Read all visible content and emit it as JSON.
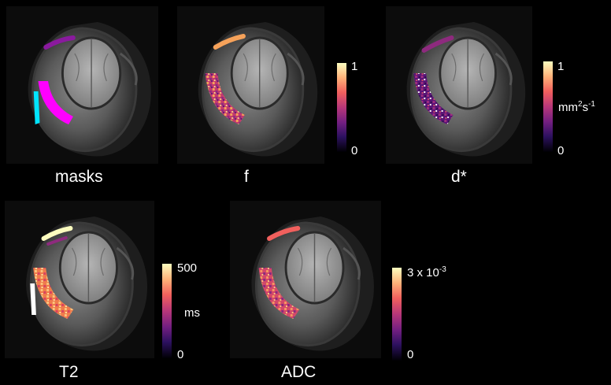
{
  "panels": {
    "masks": {
      "label": "masks"
    },
    "f": {
      "label": "f"
    },
    "dstar": {
      "label": "d*"
    },
    "t2": {
      "label": "T2"
    },
    "adc": {
      "label": "ADC"
    }
  },
  "colorbars": {
    "f": {
      "max": "1",
      "min": "0",
      "unit": ""
    },
    "dstar": {
      "max": "1",
      "min": "0",
      "unit_base1": "mm",
      "unit_exp1": "2",
      "unit_base2": "s",
      "unit_exp2": "-1"
    },
    "t2": {
      "max": "500",
      "min": "0",
      "unit": "ms"
    },
    "adc": {
      "max": "3 x 10",
      "max_exp": "-3",
      "min": "0",
      "unit": ""
    }
  },
  "colors": {
    "background": "#000000",
    "mask_magenta": "#ff00ff",
    "mask_cyan": "#00e5ff",
    "mask_purple": "#8a1a9e",
    "colormap": [
      "#000004",
      "#2c115f",
      "#721f81",
      "#b73779",
      "#f1605d",
      "#feb078",
      "#fcfdbf"
    ]
  }
}
